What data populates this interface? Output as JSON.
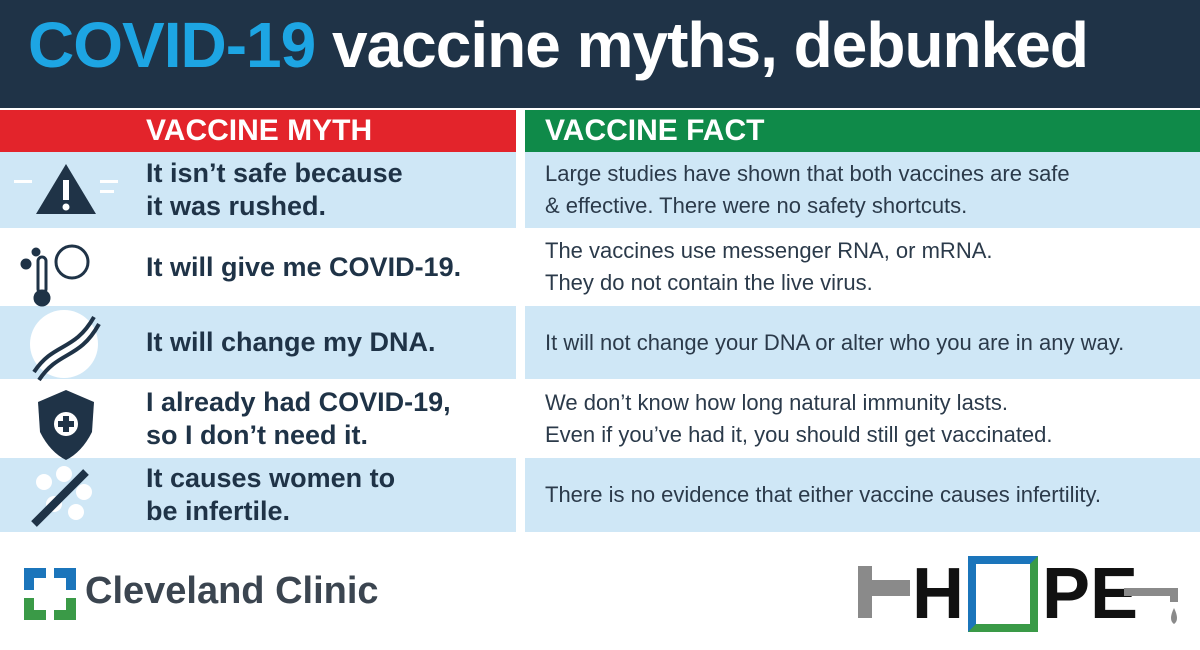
{
  "header": {
    "title_highlight": "COVID-19",
    "title_rest": "vaccine myths, debunked"
  },
  "table": {
    "headers": [
      "VACCINE MYTH",
      "VACCINE FACT"
    ],
    "rows": [
      {
        "myth": [
          "It isn’t safe because",
          "it was rushed."
        ],
        "fact": [
          "Large studies have shown that both vaccines are safe",
          "& effective. There were no safety shortcuts."
        ]
      },
      {
        "myth": [
          "It will give me COVID-19."
        ],
        "fact": [
          "The vaccines use messenger RNA, or mRNA.",
          "They do not contain the live virus."
        ]
      },
      {
        "myth": [
          "It will change my DNA."
        ],
        "fact": [
          "It will not change your DNA or alter who you are in any way."
        ]
      },
      {
        "myth": [
          "I already had COVID-19,",
          "so I don’t need it."
        ],
        "fact": [
          "We don’t know how long natural immunity lasts.",
          "Even if you’ve had it, you should still get vaccinated."
        ]
      },
      {
        "myth": [
          "It causes women to",
          "be infertile."
        ],
        "fact": [
          "There is no evidence that either vaccine causes infertility."
        ]
      }
    ]
  },
  "footer": {
    "left_logo": "Cleveland Clinic",
    "right_logo_letters": [
      "H",
      "O",
      "P",
      "E"
    ]
  }
}
